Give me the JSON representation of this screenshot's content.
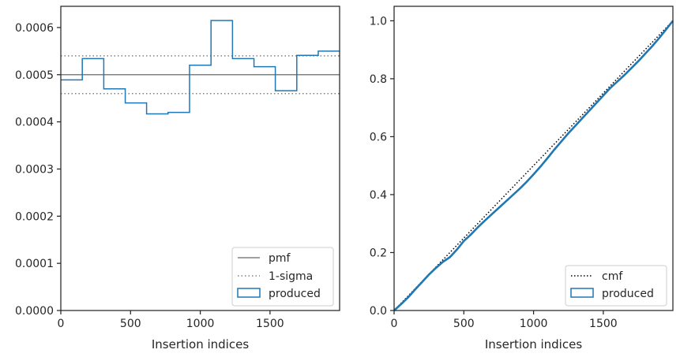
{
  "chart_data": [
    {
      "type": "step",
      "xlabel": "Insertion indices",
      "ylabel": "",
      "xlim": [
        0,
        1999
      ],
      "ylim": [
        0,
        0.000645
      ],
      "xticks": [
        0,
        500,
        1000,
        1500
      ],
      "xtick_labels": [
        "0",
        "500",
        "1000",
        "1500"
      ],
      "yticks": [
        0,
        0.0001,
        0.0002,
        0.0003,
        0.0004,
        0.0005,
        0.0006
      ],
      "ytick_labels": [
        "0.0000",
        "0.0001",
        "0.0002",
        "0.0003",
        "0.0004",
        "0.0005",
        "0.0006"
      ],
      "grid": false,
      "legend_position": "lower-right",
      "pmf": {
        "name": "pmf",
        "value": 0.0005,
        "color": "#808080"
      },
      "sigma": {
        "name": "1-sigma",
        "values": [
          0.00046,
          0.00054
        ],
        "color": "#808080"
      },
      "produced": {
        "name": "produced",
        "color": "#1f77b4",
        "bin_edges": [
          0,
          154,
          308,
          462,
          615,
          769,
          923,
          1077,
          1231,
          1385,
          1538,
          1692,
          1846,
          1999
        ],
        "values": [
          0.000489,
          0.000534,
          0.00047,
          0.00044,
          0.000417,
          0.00042,
          0.00052,
          0.000615,
          0.000534,
          0.000517,
          0.000466,
          0.000541,
          0.00055
        ]
      }
    },
    {
      "type": "line",
      "xlabel": "Insertion indices",
      "ylabel": "",
      "xlim": [
        0,
        1999
      ],
      "ylim": [
        0,
        1.05
      ],
      "xticks": [
        0,
        500,
        1000,
        1500
      ],
      "xtick_labels": [
        "0",
        "500",
        "1000",
        "1500"
      ],
      "yticks": [
        0,
        0.2,
        0.4,
        0.6,
        0.8,
        1.0
      ],
      "ytick_labels": [
        "0.0",
        "0.2",
        "0.4",
        "0.6",
        "0.8",
        "1.0"
      ],
      "grid": false,
      "legend_position": "lower-right",
      "cmf": {
        "name": "cmf",
        "x": [
          0,
          1999
        ],
        "y": [
          0,
          1.0
        ],
        "color": "#000000"
      },
      "produced": {
        "name": "produced",
        "color": "#1f77b4",
        "x": [
          0,
          50,
          100,
          150,
          200,
          250,
          300,
          350,
          400,
          450,
          500,
          550,
          600,
          650,
          700,
          750,
          800,
          850,
          900,
          950,
          1000,
          1050,
          1100,
          1150,
          1200,
          1250,
          1300,
          1350,
          1400,
          1450,
          1500,
          1550,
          1600,
          1650,
          1700,
          1750,
          1800,
          1850,
          1900,
          1950,
          1999
        ],
        "y": [
          0,
          0.022,
          0.045,
          0.072,
          0.098,
          0.124,
          0.147,
          0.168,
          0.184,
          0.21,
          0.24,
          0.262,
          0.287,
          0.31,
          0.332,
          0.354,
          0.376,
          0.398,
          0.42,
          0.444,
          0.47,
          0.497,
          0.526,
          0.556,
          0.584,
          0.612,
          0.638,
          0.664,
          0.69,
          0.716,
          0.742,
          0.768,
          0.79,
          0.812,
          0.836,
          0.86,
          0.886,
          0.912,
          0.94,
          0.97,
          1.0
        ]
      }
    }
  ]
}
